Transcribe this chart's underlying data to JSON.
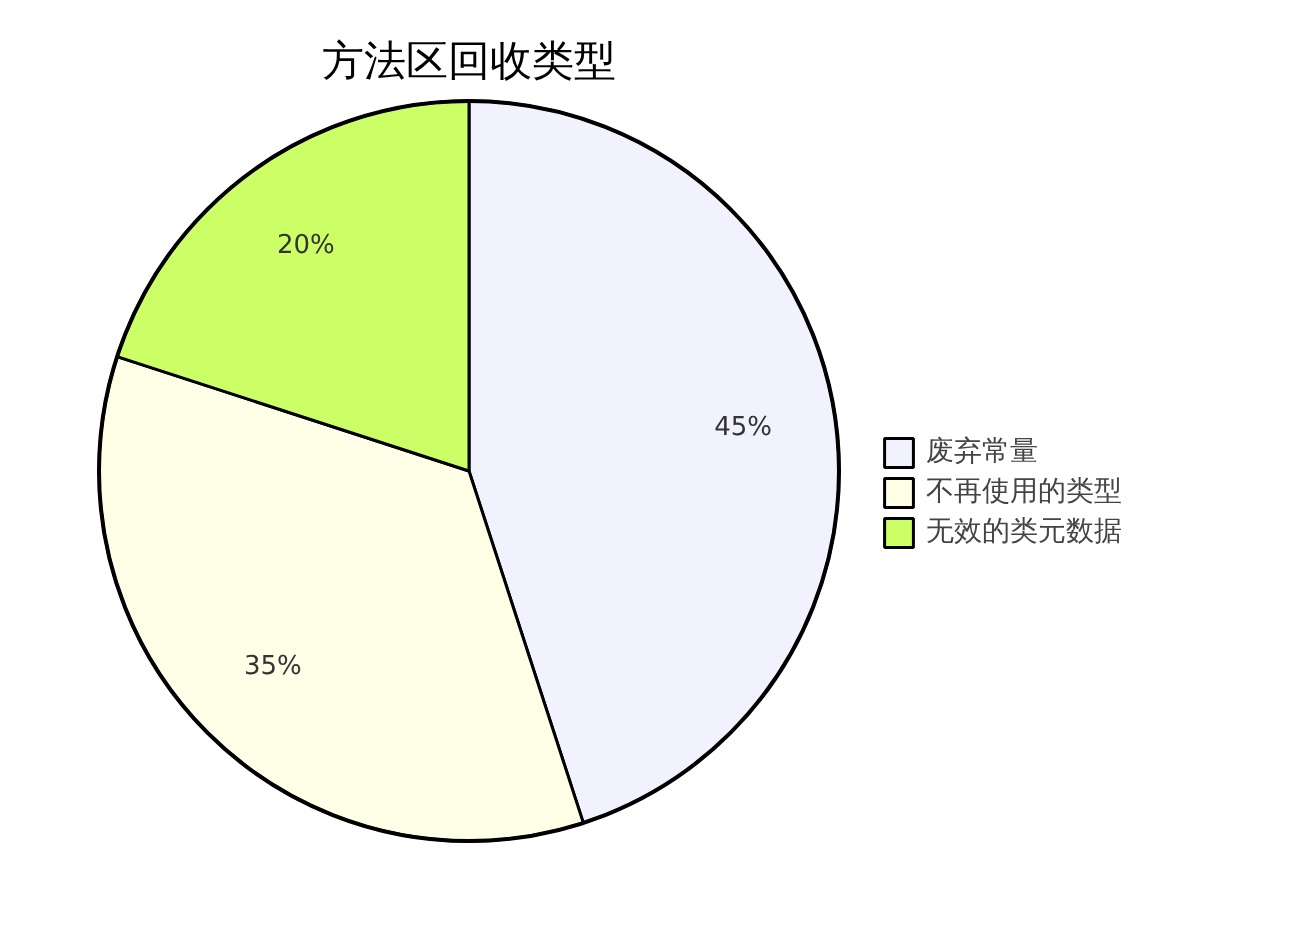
{
  "chart_data": {
    "type": "pie",
    "title": "方法区回收类型",
    "categories": [
      "废弃常量",
      "不再使用的类型",
      "无效的类元数据"
    ],
    "values": [
      45,
      35,
      20
    ],
    "colors": [
      "#f2f2ff",
      "#ffffe8",
      "#ccff66"
    ],
    "value_labels": [
      "45%",
      "35%",
      "20%"
    ],
    "legend": "right"
  }
}
